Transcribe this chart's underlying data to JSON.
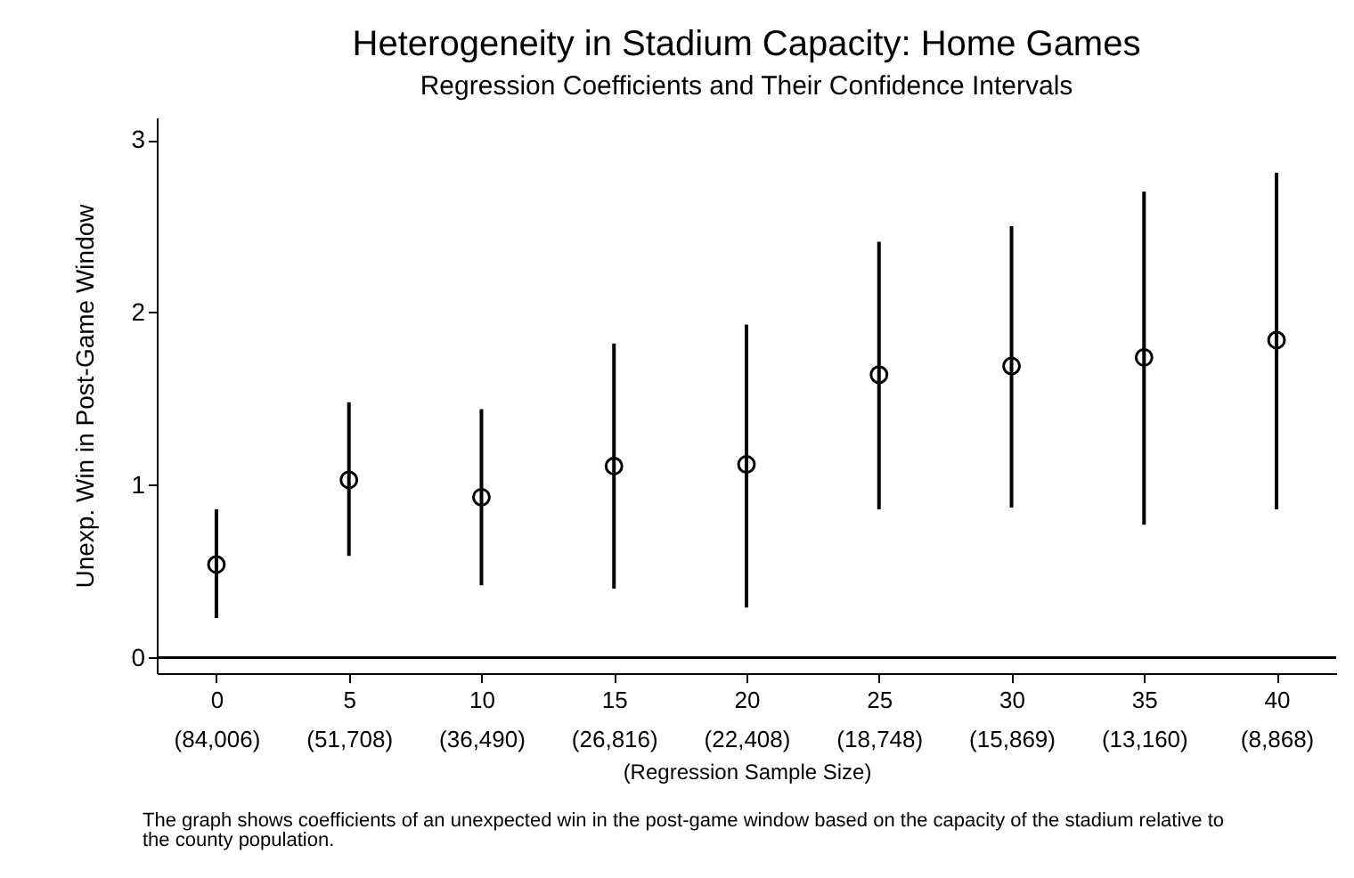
{
  "chart_data": {
    "type": "scatter",
    "title": "Heterogeneity in Stadium Capacity: Home Games",
    "subtitle": "Regression Coefficients and Their Confidence Intervals",
    "xlabel": "(Regression Sample Size)",
    "ylabel": "Unexp. Win in Post-Game Window",
    "categories": [
      "0\n(84,006)",
      "5\n(51,708)",
      "10\n(36,490)",
      "15\n(26,816)",
      "20\n(22,408)",
      "25\n(18,748)",
      "30\n(15,869)",
      "35\n(13,160)",
      "40\n(8,868)"
    ],
    "values": [
      0.54,
      1.03,
      0.93,
      1.11,
      1.12,
      1.64,
      1.69,
      1.74,
      1.84
    ],
    "errors": [
      [
        0.23,
        0.86
      ],
      [
        0.59,
        1.48
      ],
      [
        0.42,
        1.44
      ],
      [
        0.4,
        1.82
      ],
      [
        0.29,
        1.93
      ],
      [
        0.86,
        2.41
      ],
      [
        0.87,
        2.5
      ],
      [
        0.77,
        2.7
      ],
      [
        0.86,
        2.81
      ]
    ],
    "color": "#000000",
    "marker": "circle",
    "ylim": [
      -0.09,
      3.13
    ],
    "yticks": [
      0,
      1,
      2,
      3
    ],
    "ref_lines": [
      {
        "axis": "y",
        "value": 0,
        "color": "#000000"
      }
    ],
    "grid": false,
    "annotations": [
      "The graph shows coefficients of an unexpected win in the post-game window based on the capacity of the stadium relative to the county population."
    ]
  }
}
